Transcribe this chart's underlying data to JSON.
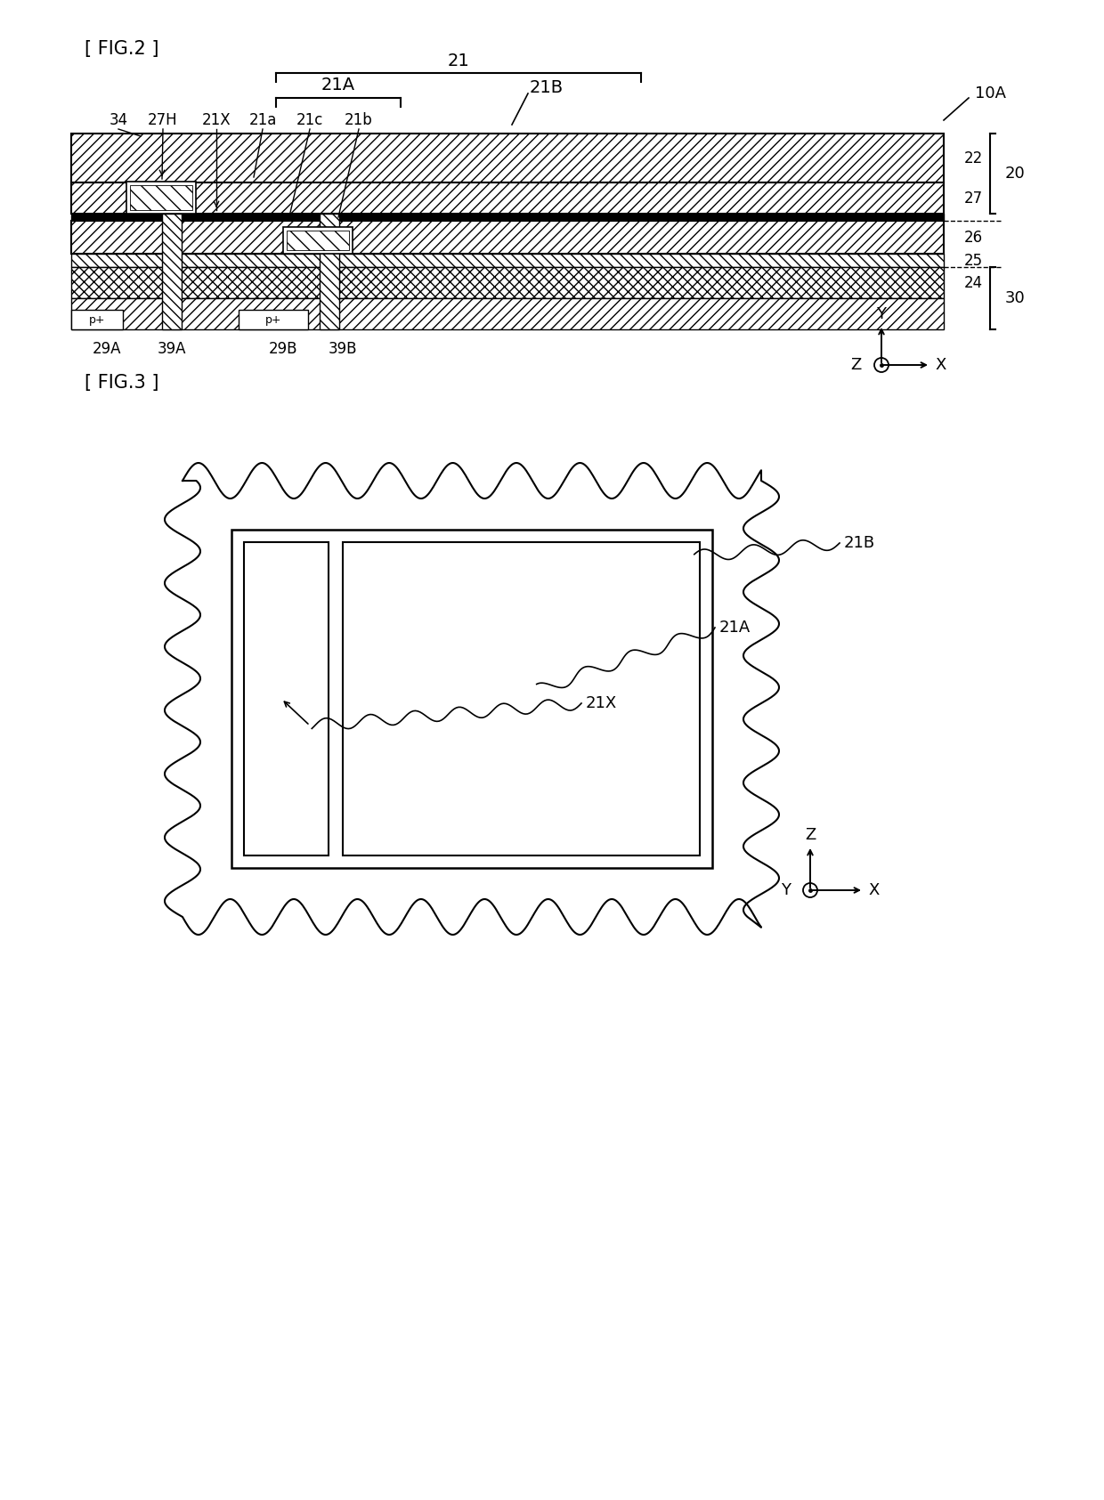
{
  "fig_label1": "[ FIG.2 ]",
  "fig_label2": "[ FIG.3 ]",
  "bg_color": "#ffffff",
  "line_color": "#000000",
  "fig2": {
    "title_label": "10A",
    "annotations_top": [
      "34",
      "27H",
      "21X",
      "21a",
      "21c",
      "21b"
    ],
    "annotations_bottom": [
      "29A",
      "39A",
      "29B",
      "39B"
    ],
    "bracket_labels": [
      "21",
      "21A",
      "21B"
    ],
    "layer_labels": [
      "22",
      "27",
      "26",
      "25",
      "24"
    ],
    "group_labels": [
      "20",
      "30"
    ]
  },
  "fig3": {
    "annotations": [
      "21B",
      "21A",
      "21X"
    ]
  }
}
